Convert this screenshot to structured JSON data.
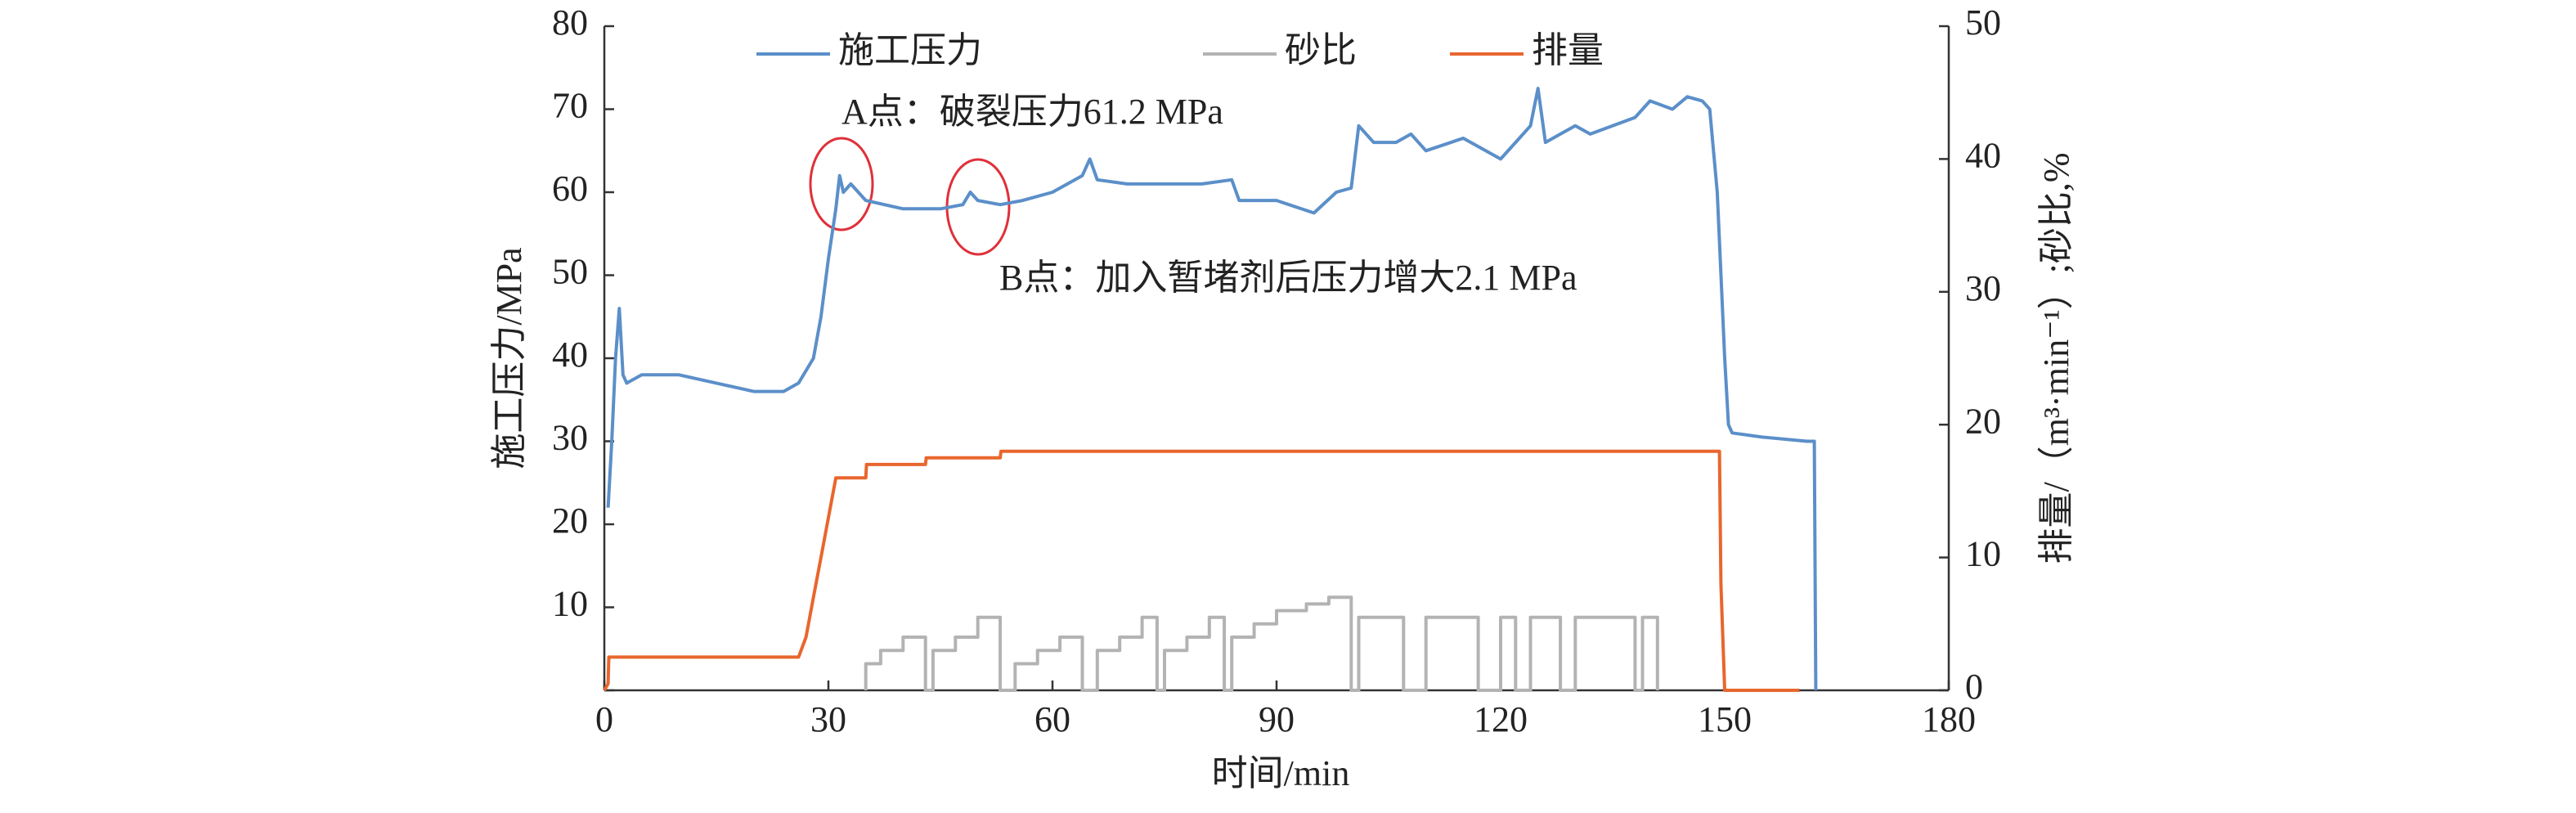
{
  "chart_data": {
    "type": "line",
    "xlabel": "时间/min",
    "ylabel": "施工压力/MPa",
    "y2label": "排量/（m³·min⁻¹）;砂比,%",
    "xlim": [
      0,
      180
    ],
    "xticks": [
      0,
      30,
      60,
      90,
      120,
      150,
      180
    ],
    "ylim": [
      0,
      80
    ],
    "yticks": [
      {
        "value": 0,
        "label": ""
      },
      10,
      20,
      30,
      40,
      50,
      60,
      70,
      80
    ],
    "y2lim": [
      0,
      50
    ],
    "y2ticks": [
      0,
      10,
      20,
      30,
      40,
      50
    ],
    "annotations": [
      "A点：破裂压力61.2 MPa",
      "B点：加入暂堵剂后压力增大2.1 MPa"
    ],
    "series": [
      {
        "name": "施工压力",
        "color": "#5b8fc9",
        "axis": "y",
        "x": [
          0.5,
          1,
          1.5,
          2,
          2.5,
          3,
          5,
          10,
          15,
          20,
          24,
          26,
          28,
          29,
          30,
          31,
          31.5,
          32,
          33,
          35,
          40,
          45,
          48,
          49,
          50,
          53,
          56,
          60,
          64,
          65,
          66,
          70,
          75,
          80,
          84,
          85,
          90,
          95,
          98,
          100,
          101,
          103,
          106,
          108,
          110,
          115,
          120,
          122,
          124,
          125,
          126,
          128,
          130,
          132,
          135,
          138,
          140,
          143,
          145,
          147,
          148,
          149,
          150,
          150.5,
          151,
          155,
          161,
          162,
          162.2
        ],
        "values": [
          22,
          30,
          40,
          46,
          38,
          37,
          38,
          38,
          37,
          36,
          36,
          37,
          40,
          45,
          52,
          58,
          62,
          60,
          61,
          59,
          58,
          58,
          58.5,
          60,
          59,
          58.5,
          59,
          60,
          62,
          64,
          61.5,
          61,
          61,
          61,
          61.5,
          59,
          59,
          57.5,
          60,
          60.5,
          68,
          66,
          66,
          67,
          65,
          66.5,
          64,
          66,
          68,
          72.5,
          66,
          67,
          68,
          67,
          68,
          69,
          71,
          70,
          71.5,
          71,
          70,
          60,
          40,
          32,
          31,
          30.5,
          30,
          30,
          0
        ]
      },
      {
        "name": "砂比",
        "color": "#b3b3b3",
        "axis": "y2",
        "x": [
          35,
          35,
          37,
          37,
          40,
          40,
          43,
          43,
          44,
          44,
          47,
          47,
          50,
          50,
          53,
          53,
          55,
          55,
          58,
          58,
          61,
          61,
          64,
          64,
          66,
          66,
          69,
          69,
          72,
          72,
          74,
          74,
          75,
          75,
          78,
          78,
          81,
          81,
          83,
          83,
          84,
          84,
          87,
          87,
          90,
          90,
          94,
          94,
          97,
          97,
          100,
          100,
          101,
          101,
          107,
          107,
          110,
          110,
          117,
          117,
          120,
          120,
          122,
          122,
          124,
          124,
          128,
          128,
          130,
          130,
          138,
          138,
          139,
          139,
          141,
          141
        ],
        "values": [
          0,
          2,
          2,
          3,
          3,
          4,
          4,
          0,
          0,
          3,
          3,
          4,
          4,
          5.5,
          5.5,
          0,
          0,
          2,
          2,
          3,
          3,
          4,
          4,
          0,
          0,
          3,
          3,
          4,
          4,
          5.5,
          5.5,
          0,
          0,
          3,
          3,
          4,
          4,
          5.5,
          5.5,
          0,
          0,
          4,
          4,
          5,
          5,
          6,
          6,
          6.5,
          6.5,
          7,
          7,
          0,
          0,
          5.5,
          5.5,
          0,
          0,
          5.5,
          5.5,
          0,
          0,
          5.5,
          5.5,
          0,
          0,
          5.5,
          5.5,
          0,
          0,
          5.5,
          5.5,
          0,
          0,
          5.5,
          5.5,
          0
        ]
      },
      {
        "name": "排量",
        "color": "#e8662e",
        "axis": "y2",
        "x": [
          0,
          0.5,
          0.6,
          26,
          27,
          28,
          29,
          30,
          31,
          35,
          35.1,
          43,
          43.1,
          53,
          53.1,
          149.3,
          149.5,
          150,
          160
        ],
        "values": [
          0,
          0.5,
          2.5,
          2.5,
          4,
          7,
          10,
          13,
          16,
          16,
          17,
          17,
          17.5,
          17.5,
          18,
          18,
          8,
          0,
          0
        ]
      }
    ]
  }
}
